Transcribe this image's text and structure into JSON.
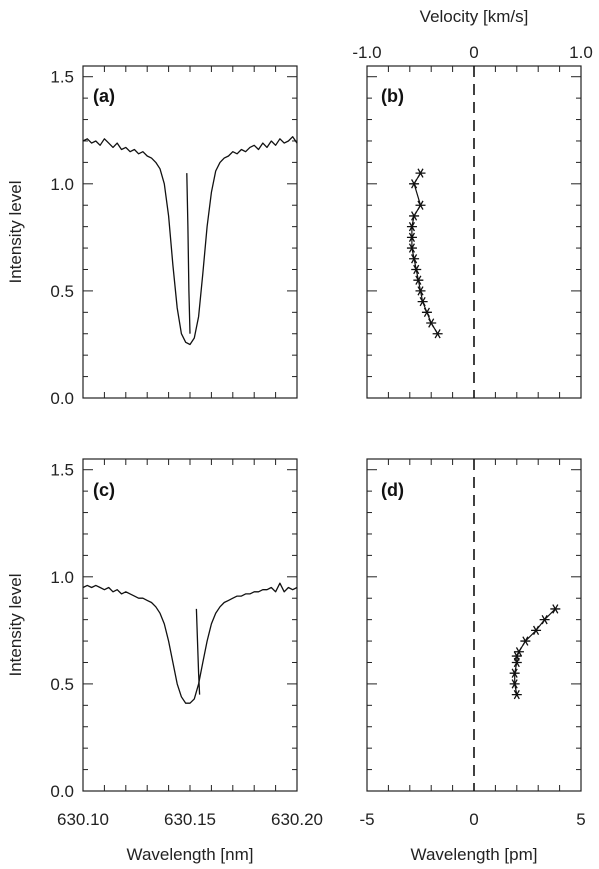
{
  "chart_data": [
    {
      "panel": "a",
      "type": "line",
      "label": "(a)",
      "xlabel": "",
      "ylabel": "Intensity level",
      "xlim": [
        630.1,
        630.2
      ],
      "ylim": [
        0.0,
        1.55
      ],
      "yticks": [
        "0.0",
        "0.5",
        "1.0",
        "1.5"
      ],
      "yticks_values": [
        0.0,
        0.5,
        1.0,
        1.5
      ],
      "series": [
        {
          "x": [
            630.1,
            630.102,
            630.104,
            630.106,
            630.108,
            630.11,
            630.112,
            630.114,
            630.116,
            630.118,
            630.12,
            630.122,
            630.124,
            630.126,
            630.128,
            630.13,
            630.132,
            630.134,
            630.136,
            630.138,
            630.14,
            630.142,
            630.144,
            630.146,
            630.148,
            630.15,
            630.152,
            630.154,
            630.156,
            630.158,
            630.16,
            630.162,
            630.164,
            630.166,
            630.168,
            630.17,
            630.172,
            630.174,
            630.176,
            630.178,
            630.18,
            630.182,
            630.184,
            630.186,
            630.188,
            630.19,
            630.192,
            630.194,
            630.196,
            630.198,
            630.2
          ],
          "y": [
            1.2,
            1.21,
            1.19,
            1.2,
            1.18,
            1.21,
            1.19,
            1.17,
            1.19,
            1.16,
            1.17,
            1.15,
            1.16,
            1.14,
            1.15,
            1.13,
            1.12,
            1.1,
            1.07,
            1.0,
            0.85,
            0.62,
            0.42,
            0.3,
            0.26,
            0.25,
            0.28,
            0.38,
            0.58,
            0.8,
            0.96,
            1.06,
            1.1,
            1.12,
            1.13,
            1.15,
            1.14,
            1.16,
            1.15,
            1.17,
            1.18,
            1.16,
            1.19,
            1.17,
            1.2,
            1.18,
            1.21,
            1.19,
            1.2,
            1.22,
            1.19
          ]
        },
        {
          "x": [
            630.1485,
            630.149,
            630.1495,
            630.15
          ],
          "y": [
            1.05,
            0.8,
            0.5,
            0.3
          ]
        }
      ]
    },
    {
      "panel": "b",
      "type": "scatter",
      "label": "(b)",
      "xlabel": "",
      "top_xlabel": "Velocity [km/s]",
      "top_xticks": [
        "-1.0",
        "0",
        "1.0"
      ],
      "top_xticks_values": [
        -1.0,
        0.0,
        1.0
      ],
      "xlim": [
        -5,
        5
      ],
      "ylim": [
        0.0,
        1.55
      ],
      "reference_line_x": 0,
      "series": [
        {
          "x": [
            -1.7,
            -2.0,
            -2.2,
            -2.4,
            -2.5,
            -2.6,
            -2.7,
            -2.8,
            -2.9,
            -2.9,
            -2.9,
            -2.8,
            -2.5,
            -2.8,
            -2.5
          ],
          "y": [
            0.3,
            0.35,
            0.4,
            0.45,
            0.5,
            0.55,
            0.6,
            0.65,
            0.7,
            0.75,
            0.8,
            0.85,
            0.9,
            1.0,
            1.05
          ]
        }
      ]
    },
    {
      "panel": "c",
      "type": "line",
      "label": "(c)",
      "xlabel": "Wavelength [nm]",
      "ylabel": "Intensity level",
      "xlim": [
        630.1,
        630.2
      ],
      "ylim": [
        0.0,
        1.55
      ],
      "xticks": [
        "630.10",
        "630.15",
        "630.20"
      ],
      "xticks_values": [
        630.1,
        630.15,
        630.2
      ],
      "yticks": [
        "0.0",
        "0.5",
        "1.0",
        "1.5"
      ],
      "yticks_values": [
        0.0,
        0.5,
        1.0,
        1.5
      ],
      "series": [
        {
          "x": [
            630.1,
            630.102,
            630.104,
            630.106,
            630.108,
            630.11,
            630.112,
            630.114,
            630.116,
            630.118,
            630.12,
            630.122,
            630.124,
            630.126,
            630.128,
            630.13,
            630.132,
            630.134,
            630.136,
            630.138,
            630.14,
            630.142,
            630.144,
            630.146,
            630.148,
            630.15,
            630.152,
            630.154,
            630.156,
            630.158,
            630.16,
            630.162,
            630.164,
            630.166,
            630.168,
            630.17,
            630.172,
            630.174,
            630.176,
            630.178,
            630.18,
            630.182,
            630.184,
            630.186,
            630.188,
            630.19,
            630.192,
            630.194,
            630.196,
            630.198,
            630.2
          ],
          "y": [
            0.95,
            0.96,
            0.95,
            0.96,
            0.95,
            0.94,
            0.95,
            0.93,
            0.94,
            0.92,
            0.93,
            0.92,
            0.91,
            0.9,
            0.9,
            0.89,
            0.88,
            0.86,
            0.83,
            0.78,
            0.7,
            0.6,
            0.5,
            0.44,
            0.41,
            0.41,
            0.43,
            0.5,
            0.6,
            0.7,
            0.78,
            0.83,
            0.86,
            0.88,
            0.89,
            0.9,
            0.91,
            0.91,
            0.92,
            0.92,
            0.93,
            0.93,
            0.94,
            0.94,
            0.95,
            0.93,
            0.97,
            0.93,
            0.95,
            0.94,
            0.95
          ]
        },
        {
          "x": [
            630.153,
            630.1535,
            630.154,
            630.1545
          ],
          "y": [
            0.85,
            0.7,
            0.55,
            0.45
          ]
        }
      ]
    },
    {
      "panel": "d",
      "type": "scatter",
      "label": "(d)",
      "xlabel": "Wavelength [pm]",
      "xlim": [
        -5,
        5
      ],
      "ylim": [
        0.0,
        1.55
      ],
      "xticks": [
        "-5",
        "0",
        "5"
      ],
      "xticks_values": [
        -5,
        0,
        5
      ],
      "reference_line_x": 0,
      "series": [
        {
          "x": [
            2.0,
            1.9,
            1.9,
            2.0,
            2.0,
            2.1,
            2.4,
            2.9,
            3.3,
            3.8
          ],
          "y": [
            0.45,
            0.5,
            0.55,
            0.6,
            0.63,
            0.65,
            0.7,
            0.75,
            0.8,
            0.85
          ]
        }
      ]
    }
  ]
}
